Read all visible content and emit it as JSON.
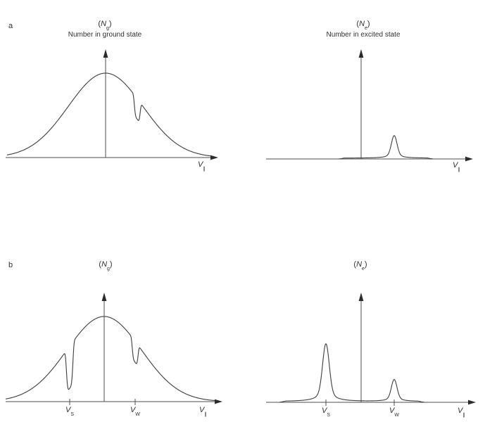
{
  "colors": {
    "line": "#3d3d3d",
    "axis": "#4d4d4d",
    "arrow": "#2b2b2b",
    "text": "#2e2e2e",
    "background": "#ffffff"
  },
  "panels": {
    "tl": {
      "letter": "a",
      "name_pre": "(",
      "name_main": "N",
      "name_sub": "g",
      "name_post": ")",
      "subtitle": "Number in ground state",
      "xlabel_main": "V",
      "xlabel_sub": "∥"
    },
    "tr": {
      "name_pre": "(",
      "name_main": "N",
      "name_sub": "e",
      "name_post": ")",
      "subtitle": "Number in excited state",
      "xlabel_main": "V",
      "xlabel_sub": "∥"
    },
    "bl": {
      "letter": "b",
      "name_pre": "(",
      "name_main": "N",
      "name_sub": "g",
      "name_post": ")",
      "xlabel_main": "V",
      "xlabel_sub": "∥"
    },
    "br": {
      "name_pre": "(",
      "name_main": "N",
      "name_sub": "e",
      "name_post": ")",
      "xlabel_main": "V",
      "xlabel_sub": "∥"
    }
  },
  "chart_data": [
    {
      "id": "tl",
      "type": "line",
      "panel": "a",
      "role": "ground-state",
      "ylabel": "(Ng)",
      "subtitle": "Number in ground state",
      "xlabel": "V∥",
      "units": "arbitrary (velocity along beam)",
      "grid": false,
      "v_range": [
        -140,
        152
      ],
      "curve": {
        "kind": "gaussian_holes",
        "amp": 120,
        "sigma": 53,
        "center": 0,
        "holes": [
          {
            "v": 45,
            "depth_frac": 0.35,
            "width": 4.5,
            "power": 4
          }
        ]
      },
      "ticks": []
    },
    {
      "id": "tr",
      "type": "line",
      "panel": "a",
      "role": "excited-state",
      "ylabel": "(Ne)",
      "subtitle": "Number in excited state",
      "xlabel": "V∥",
      "units": "arbitrary (velocity along beam)",
      "grid": false,
      "v_range": [
        -32,
        102
      ],
      "curve": {
        "kind": "peaks",
        "pedestal": {
          "from": -30,
          "to": 100,
          "height": 1.2
        },
        "peaks": [
          {
            "v": 47,
            "height": 32,
            "width": 5.5
          }
        ]
      },
      "ticks": []
    },
    {
      "id": "bl",
      "type": "line",
      "panel": "b",
      "role": "ground-state",
      "ylabel": "(Ng)",
      "xlabel": "V∥",
      "units": "arbitrary (velocity along beam)",
      "grid": false,
      "v_range": [
        -140,
        157
      ],
      "curve": {
        "kind": "gaussian_holes",
        "amp": 121,
        "sigma": 53,
        "center": 0,
        "holes": [
          {
            "v": -49,
            "depth_frac": 0.76,
            "width": 5,
            "power": 4
          },
          {
            "v": 44,
            "depth_frac": 0.35,
            "width": 4.5,
            "power": 4
          }
        ]
      },
      "ticks": [
        {
          "v": -49,
          "label_main": "V",
          "label_sub": "S"
        },
        {
          "v": 44,
          "label_main": "V",
          "label_sub": "W"
        }
      ]
    },
    {
      "id": "br",
      "type": "line",
      "panel": "b",
      "role": "excited-state",
      "ylabel": "(Ne)",
      "xlabel": "V∥",
      "units": "arbitrary (velocity along beam)",
      "grid": false,
      "v_range": [
        -115,
        89
      ],
      "curve": {
        "kind": "peaks",
        "pedestal": {
          "from": -113,
          "to": 87,
          "height": 1.2
        },
        "peaks": [
          {
            "v": -50,
            "height": 82,
            "width": 6.5
          },
          {
            "v": 47,
            "height": 31,
            "width": 5.5
          }
        ]
      },
      "ticks": [
        {
          "v": -50,
          "label_main": "V",
          "label_sub": "S"
        },
        {
          "v": 47,
          "label_main": "V",
          "label_sub": "W"
        }
      ]
    }
  ]
}
